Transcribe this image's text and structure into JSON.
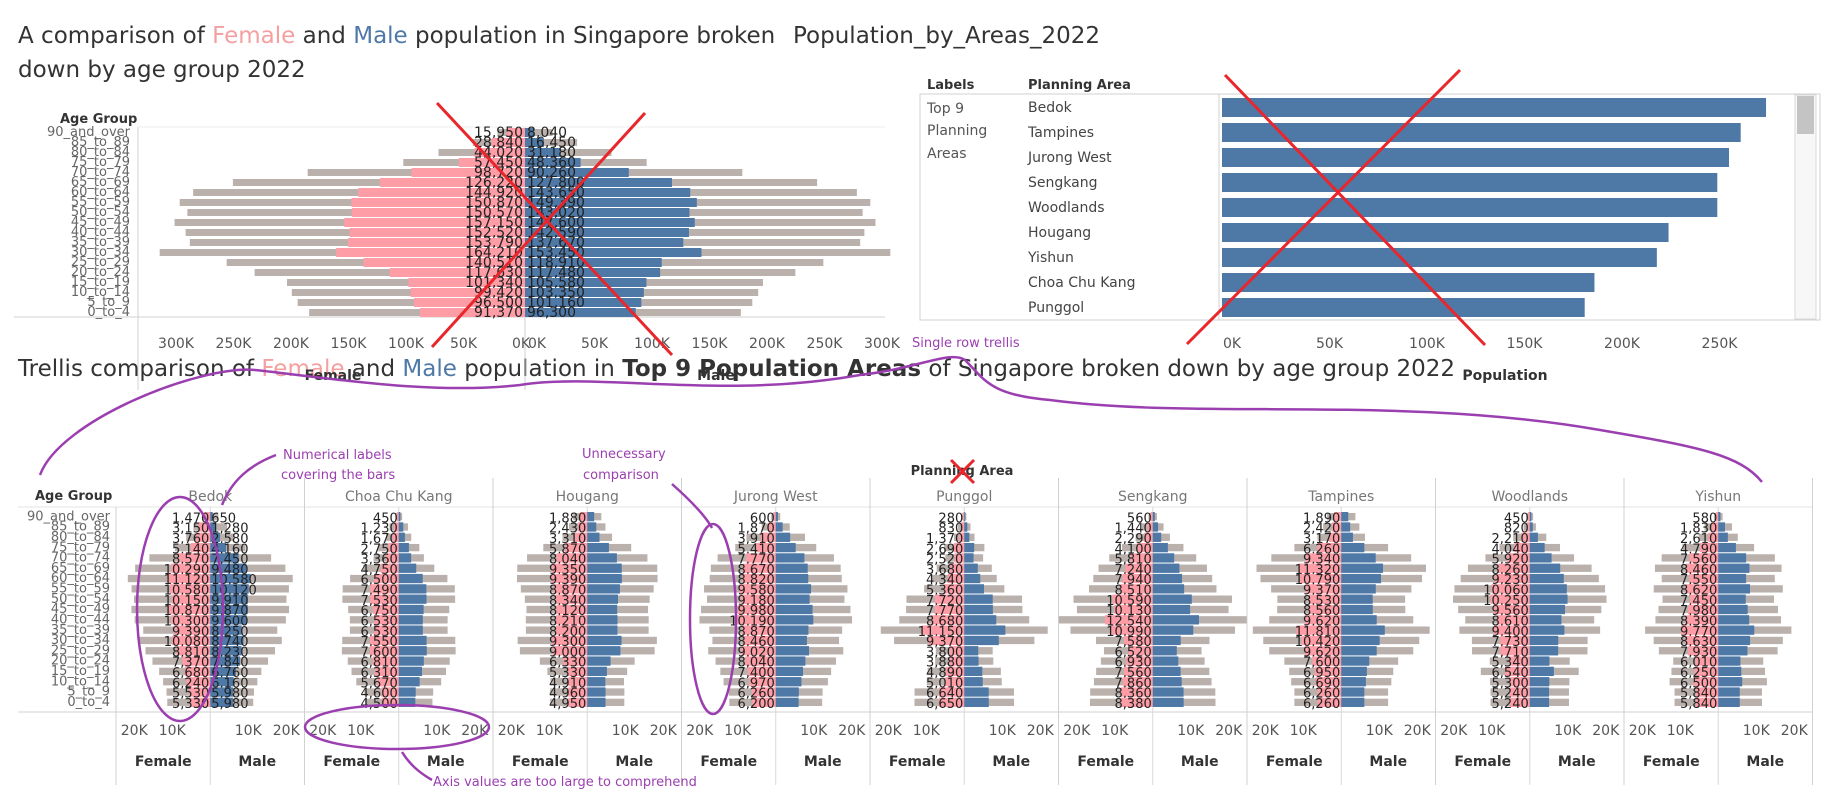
{
  "colors": {
    "female": "#ff9da7",
    "male": "#4e79a7",
    "total": "#bab0ac",
    "annotation": "#9b3fb0",
    "cross": "#e8262b",
    "text": "#333333"
  },
  "top_left": {
    "title_pre": "A comparison of ",
    "title_female": "Female",
    "title_mid": " and ",
    "title_male": "Male",
    "title_post": " population in Singapore broken down by age group 2022",
    "row_header": "Age Group",
    "female_axis_label": "Female",
    "male_axis_label": "Male"
  },
  "top_right": {
    "title": "Population_by_Areas_2022",
    "col_labels": "Labels",
    "col_area": "Planning Area",
    "row_label": "Top 9 Planning Areas",
    "x_axis_label": "Population"
  },
  "bottom": {
    "title_pre": "Trellis comparison of ",
    "title_female": "Female",
    "title_mid": " and ",
    "title_male": "Male",
    "title_mid2": " population in ",
    "title_bold": "Top 9 Population Areas",
    "title_post": " of Singapore broken down by age group 2022",
    "row_header": "Age Group",
    "column_header": "Planning Area",
    "female_axis_label": "Female",
    "male_axis_label": "Male"
  },
  "annotations": {
    "single_row": "Single row trellis",
    "numerical_labels": "Numerical labels covering the bars",
    "unnecessary": "Unnecessary comparison",
    "axis_values": "Axis values are too large to comprehend"
  },
  "chart_data": [
    {
      "type": "bar",
      "title": "A comparison of Female and Male population in Singapore broken down by age group 2022",
      "categories": [
        "90_and_over",
        "85_to_89",
        "80_to_84",
        "75_to_79",
        "70_to_74",
        "65_to_69",
        "60_to_64",
        "55_to_59",
        "50_to_54",
        "45_to_49",
        "40_to_44",
        "35_to_39",
        "30_to_34",
        "25_to_29",
        "20_to_24",
        "15_to_19",
        "10_to_14",
        "5_to_9",
        "0_to_4"
      ],
      "series": [
        {
          "name": "Female",
          "values": [
            15950,
            28840,
            44020,
            57450,
            98720,
            126220,
            144920,
            150870,
            150570,
            157150,
            152520,
            153790,
            164210,
            140510,
            117630,
            101340,
            99420,
            96500,
            91370
          ]
        },
        {
          "name": "Male",
          "values": [
            8040,
            16450,
            31180,
            48360,
            90260,
            127800,
            143650,
            149390,
            143020,
            147600,
            142590,
            137670,
            153450,
            118910,
            117480,
            105580,
            103350,
            101160,
            96300
          ]
        }
      ],
      "female_axis_ticks": [
        "300K",
        "250K",
        "200K",
        "150K",
        "100K",
        "50K",
        "0K"
      ],
      "male_axis_ticks": [
        "0K",
        "50K",
        "100K",
        "150K",
        "200K",
        "250K",
        "300K"
      ],
      "xlim": [
        0,
        330000
      ],
      "xlabel_left": "Female",
      "xlabel_right": "Male",
      "ylabel": "Age Group"
    },
    {
      "type": "bar",
      "title": "Population_by_Areas_2022",
      "categories": [
        "Bedok",
        "Tampines",
        "Jurong West",
        "Sengkang",
        "Woodlands",
        "Hougang",
        "Yishun",
        "Choa Chu Kang",
        "Punggol"
      ],
      "values": [
        279000,
        266000,
        260000,
        254000,
        254000,
        229000,
        223000,
        191000,
        186000
      ],
      "x_ticks": [
        "0K",
        "50K",
        "100K",
        "150K",
        "200K",
        "250K"
      ],
      "xlim": [
        0,
        290000
      ],
      "xlabel": "Population"
    },
    {
      "type": "bar",
      "title": "Trellis comparison of Female and Male population in Top 9 Population Areas of Singapore broken down by age group 2022",
      "categories": [
        "90_and_over",
        "85_to_89",
        "80_to_84",
        "75_to_79",
        "70_to_74",
        "65_to_69",
        "60_to_64",
        "55_to_59",
        "50_to_54",
        "45_to_49",
        "40_to_44",
        "35_to_39",
        "30_to_34",
        "25_to_29",
        "20_to_24",
        "15_to_19",
        "10_to_14",
        "5_to_9",
        "0_to_4"
      ],
      "areas": [
        "Bedok",
        "Choa Chu Kang",
        "Hougang",
        "Jurong West",
        "Punggol",
        "Sengkang",
        "Tampines",
        "Woodlands",
        "Yishun"
      ],
      "panels": [
        {
          "area": "Bedok",
          "female": [
            1470,
            3150,
            3760,
            5140,
            8570,
            10290,
            11120,
            10580,
            10150,
            10870,
            10300,
            9390,
            10080,
            8810,
            7370,
            6680,
            6240,
            5530,
            5330
          ],
          "male": [
            650,
            1280,
            2580,
            4160,
            7450,
            9480,
            10580,
            10120,
            9910,
            9870,
            9600,
            8250,
            8740,
            8230,
            7840,
            6760,
            6160,
            5980,
            5980
          ]
        },
        {
          "area": "Choa Chu Kang",
          "female": [
            450,
            1230,
            1670,
            2750,
            3360,
            4750,
            6500,
            7490,
            7530,
            6750,
            6530,
            6530,
            7550,
            7600,
            6810,
            6310,
            5670,
            4600,
            4500
          ]
        },
        {
          "area": "Hougang",
          "female": [
            1880,
            2430,
            3310,
            5870,
            8040,
            9350,
            9390,
            8870,
            8340,
            8120,
            8210,
            8200,
            9300,
            9000,
            6330,
            5330,
            4910,
            4960,
            4950
          ]
        },
        {
          "area": "Jurong West",
          "female": [
            600,
            1870,
            3910,
            5410,
            7770,
            8670,
            8820,
            9580,
            9180,
            9980,
            10190,
            8870,
            8460,
            9020,
            8040,
            7400,
            6970,
            6260,
            6200
          ]
        },
        {
          "area": "Punggol",
          "female": [
            280,
            830,
            1370,
            2690,
            2520,
            3680,
            4340,
            5360,
            7720,
            7770,
            8680,
            11150,
            9370,
            3800,
            3880,
            4890,
            5010,
            6640,
            6650
          ]
        },
        {
          "area": "Sengkang",
          "female": [
            560,
            1440,
            2290,
            4100,
            5810,
            7240,
            7940,
            8510,
            10590,
            10130,
            12540,
            10990,
            7580,
            6520,
            6930,
            7560,
            7860,
            8360,
            8380
          ]
        },
        {
          "area": "Tampines",
          "female": [
            1890,
            2420,
            3170,
            6260,
            9340,
            11320,
            10790,
            9370,
            8530,
            8560,
            9620,
            11810,
            10420,
            9620,
            7600,
            6950,
            6690,
            6260,
            6260
          ]
        },
        {
          "area": "Woodlands",
          "female": [
            450,
            820,
            2210,
            4040,
            5920,
            8260,
            9230,
            10060,
            10250,
            9560,
            8610,
            9400,
            7730,
            7710,
            5340,
            6540,
            5300,
            5240,
            5240
          ]
        },
        {
          "area": "Yishun",
          "female": [
            580,
            1830,
            2610,
            4790,
            7560,
            8460,
            7550,
            8620,
            7450,
            7980,
            8390,
            9770,
            8630,
            7930,
            6010,
            6250,
            6500,
            5840,
            5840
          ]
        }
      ],
      "axis_ticks_female": [
        "20K",
        "10K"
      ],
      "axis_ticks_male": [
        "10K",
        "20K"
      ],
      "xlim": [
        0,
        25000
      ],
      "xlabel_left": "Female",
      "xlabel_right": "Male",
      "ylabel": "Age Group"
    }
  ]
}
